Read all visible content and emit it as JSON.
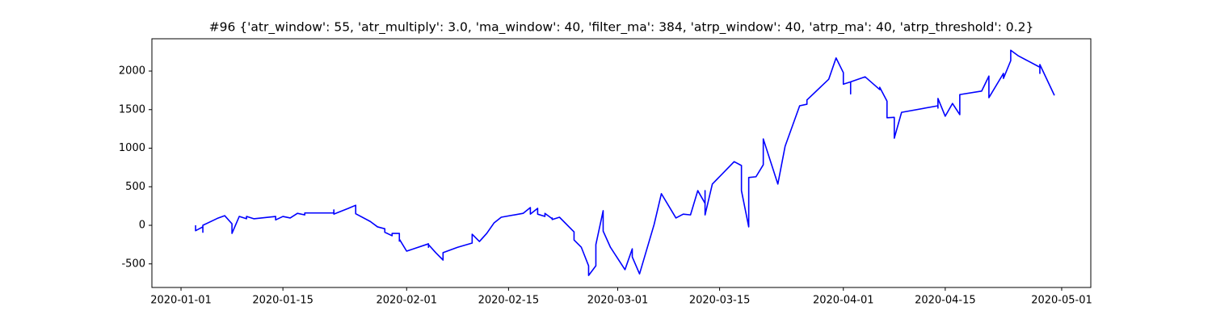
{
  "chart_data": {
    "type": "line",
    "title": "#96 {'atr_window': 55, 'atr_multiply': 3.0, 'ma_window': 40, 'filter_ma': 384, 'atrp_window': 40, 'atrp_ma': 40, 'atrp_threshold': 0.2}",
    "x": [
      "2020-01-03",
      "2020-01-03",
      "2020-01-03",
      "2020-01-04",
      "2020-01-04",
      "2020-01-04",
      "2020-01-06",
      "2020-01-07",
      "2020-01-08",
      "2020-01-08",
      "2020-01-09",
      "2020-01-10",
      "2020-01-10",
      "2020-01-11",
      "2020-01-14",
      "2020-01-14",
      "2020-01-15",
      "2020-01-16",
      "2020-01-17",
      "2020-01-18",
      "2020-01-18",
      "2020-01-22",
      "2020-01-22",
      "2020-01-22",
      "2020-01-24",
      "2020-01-25",
      "2020-01-25",
      "2020-01-27",
      "2020-01-28",
      "2020-01-29",
      "2020-01-29",
      "2020-01-30",
      "2020-01-30",
      "2020-01-31",
      "2020-01-31",
      "2020-01-31",
      "2020-02-01",
      "2020-02-04",
      "2020-02-04",
      "2020-02-04",
      "2020-02-05",
      "2020-02-06",
      "2020-02-06",
      "2020-02-08",
      "2020-02-10",
      "2020-02-10",
      "2020-02-11",
      "2020-02-12",
      "2020-02-13",
      "2020-02-14",
      "2020-02-14",
      "2020-02-17",
      "2020-02-18",
      "2020-02-18",
      "2020-02-19",
      "2020-02-19",
      "2020-02-20",
      "2020-02-20",
      "2020-02-21",
      "2020-02-21",
      "2020-02-21",
      "2020-02-22",
      "2020-02-24",
      "2020-02-24",
      "2020-02-25",
      "2020-02-26",
      "2020-02-26",
      "2020-02-27",
      "2020-02-27",
      "2020-02-28",
      "2020-02-28",
      "2020-02-29",
      "2020-03-02",
      "2020-03-03",
      "2020-03-03",
      "2020-03-04",
      "2020-03-06",
      "2020-03-07",
      "2020-03-09",
      "2020-03-10",
      "2020-03-11",
      "2020-03-12",
      "2020-03-13",
      "2020-03-13",
      "2020-03-13",
      "2020-03-14",
      "2020-03-17",
      "2020-03-18",
      "2020-03-18",
      "2020-03-19",
      "2020-03-19",
      "2020-03-20",
      "2020-03-21",
      "2020-03-21",
      "2020-03-23",
      "2020-03-24",
      "2020-03-24",
      "2020-03-26",
      "2020-03-27",
      "2020-03-27",
      "2020-03-30",
      "2020-03-31",
      "2020-04-01",
      "2020-04-01",
      "2020-04-02",
      "2020-04-02",
      "2020-04-02",
      "2020-04-04",
      "2020-04-06",
      "2020-04-06",
      "2020-04-07",
      "2020-04-07",
      "2020-04-08",
      "2020-04-08",
      "2020-04-09",
      "2020-04-14",
      "2020-04-14",
      "2020-04-14",
      "2020-04-14",
      "2020-04-15",
      "2020-04-16",
      "2020-04-17",
      "2020-04-17",
      "2020-04-17",
      "2020-04-20",
      "2020-04-21",
      "2020-04-21",
      "2020-04-23",
      "2020-04-23",
      "2020-04-24",
      "2020-04-24",
      "2020-04-25",
      "2020-04-28",
      "2020-04-28",
      "2020-04-28",
      "2020-04-30"
    ],
    "series": [
      {
        "color": "#0000ff",
        "values": [
          0,
          -10,
          -70,
          -20,
          -90,
          0,
          90,
          125,
          20,
          -105,
          115,
          85,
          115,
          85,
          115,
          70,
          115,
          95,
          155,
          135,
          160,
          160,
          200,
          145,
          220,
          260,
          150,
          50,
          -20,
          -45,
          -90,
          -135,
          -105,
          -105,
          -205,
          -180,
          -335,
          -240,
          -285,
          -250,
          -355,
          -450,
          -355,
          -285,
          -230,
          -115,
          -210,
          -105,
          30,
          105,
          105,
          155,
          230,
          145,
          220,
          145,
          115,
          155,
          85,
          95,
          75,
          105,
          -85,
          -190,
          -285,
          -525,
          -650,
          -525,
          -250,
          190,
          -75,
          -285,
          -575,
          -305,
          -410,
          -630,
          10,
          410,
          95,
          145,
          135,
          450,
          285,
          450,
          135,
          535,
          825,
          775,
          450,
          -20,
          620,
          630,
          785,
          1120,
          535,
          1025,
          1025,
          1550,
          1570,
          1625,
          1895,
          2170,
          1980,
          1830,
          1860,
          1705,
          1860,
          1925,
          1760,
          1790,
          1610,
          1395,
          1400,
          1130,
          1465,
          1550,
          1645,
          1520,
          1645,
          1415,
          1580,
          1435,
          1590,
          1695,
          1740,
          1935,
          1655,
          1970,
          1905,
          2135,
          2270,
          2200,
          2050,
          1970,
          2085,
          1685
        ]
      }
    ],
    "xlim": [
      "2019-12-28",
      "2020-05-05"
    ],
    "xticks": [
      "2020-01-01",
      "2020-01-15",
      "2020-02-01",
      "2020-02-15",
      "2020-03-01",
      "2020-03-15",
      "2020-04-01",
      "2020-04-15",
      "2020-05-01"
    ],
    "ylim": [
      -806,
      2419
    ],
    "yticks": [
      -500,
      0,
      500,
      1000,
      1500,
      2000
    ],
    "grid": false
  }
}
